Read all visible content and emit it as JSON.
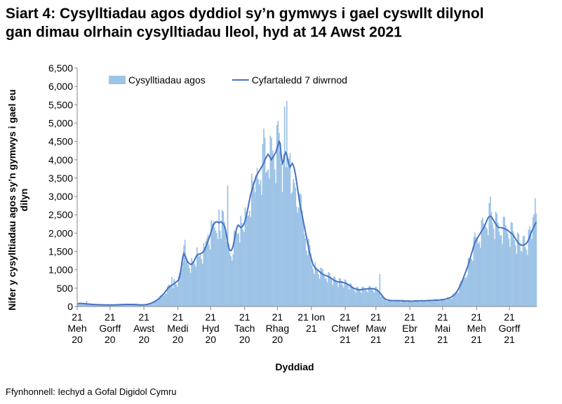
{
  "chart_data": {
    "type": "bar",
    "title": "Siart 4: Cysylltiadau agos dyddiol sy’n gymwys i gael cyswllt dilynol\ngan dimau olrhain cysylltiadau lleol, hyd at 14 Awst 2021",
    "x_label": "Dyddiad",
    "y_label": "Nifer y cysylltiadau agos sy’n gymwys i gael eu\ndilyn",
    "source": "Ffynhonnell: Iechyd a Gofal Digidol Cymru",
    "legend_position": "top",
    "ylim": [
      0,
      6500
    ],
    "yticks": [
      0,
      500,
      {
        "value": 1000,
        "label": "1,000"
      },
      {
        "value": 1500,
        "label": "1,500"
      },
      {
        "value": 2000,
        "label": "2,000"
      },
      {
        "value": 2500,
        "label": "2,500"
      },
      {
        "value": 3000,
        "label": "3,000"
      },
      {
        "value": 3500,
        "label": "3,500"
      },
      {
        "value": 4000,
        "label": "4,000"
      },
      {
        "value": 4500,
        "label": "4,500"
      },
      {
        "value": 5000,
        "label": "5,000"
      },
      {
        "value": 5500,
        "label": "5,500"
      },
      {
        "value": 6000,
        "label": "6,000"
      },
      {
        "value": 6500,
        "label": "6,500"
      }
    ],
    "categories": [
      "21\nMeh\n20",
      null,
      null,
      null,
      null,
      null,
      null,
      null,
      null,
      null,
      null,
      null,
      null,
      null,
      null,
      null,
      null,
      null,
      null,
      null,
      null,
      null,
      null,
      null,
      null,
      null,
      null,
      null,
      null,
      null,
      "21\nGorff\n20",
      null,
      null,
      null,
      null,
      null,
      null,
      null,
      null,
      null,
      null,
      null,
      null,
      null,
      null,
      null,
      null,
      null,
      null,
      null,
      null,
      null,
      null,
      null,
      null,
      null,
      null,
      null,
      null,
      null,
      null,
      "21\nAwst\n20",
      null,
      null,
      null,
      null,
      null,
      null,
      null,
      null,
      null,
      null,
      null,
      null,
      null,
      null,
      null,
      null,
      null,
      null,
      null,
      null,
      null,
      null,
      null,
      null,
      null,
      null,
      null,
      null,
      null,
      null,
      "21\nMedi\n20",
      null,
      null,
      null,
      null,
      null,
      null,
      null,
      null,
      null,
      null,
      null,
      null,
      null,
      null,
      null,
      null,
      null,
      null,
      null,
      null,
      null,
      null,
      null,
      null,
      null,
      null,
      null,
      null,
      null,
      "21\nHyd\n20",
      null,
      null,
      null,
      null,
      null,
      null,
      null,
      null,
      null,
      null,
      null,
      null,
      null,
      null,
      null,
      null,
      null,
      null,
      null,
      null,
      null,
      null,
      null,
      null,
      null,
      null,
      null,
      null,
      null,
      null,
      "21\nTach\n20",
      null,
      null,
      null,
      null,
      null,
      null,
      null,
      null,
      null,
      null,
      null,
      null,
      null,
      null,
      null,
      null,
      null,
      null,
      null,
      null,
      null,
      null,
      null,
      null,
      null,
      null,
      null,
      null,
      null,
      "21\nRhag\n20",
      null,
      null,
      null,
      null,
      null,
      null,
      null,
      null,
      null,
      null,
      null,
      null,
      null,
      null,
      null,
      null,
      null,
      null,
      null,
      null,
      null,
      null,
      null,
      null,
      null,
      null,
      null,
      null,
      null,
      null,
      "21 Ion\n21",
      null,
      null,
      null,
      null,
      null,
      null,
      null,
      null,
      null,
      null,
      null,
      null,
      null,
      null,
      null,
      null,
      null,
      null,
      null,
      null,
      null,
      null,
      null,
      null,
      null,
      null,
      null,
      null,
      null,
      null,
      "21\nChwef\n21",
      null,
      null,
      null,
      null,
      null,
      null,
      null,
      null,
      null,
      null,
      null,
      null,
      null,
      null,
      null,
      null,
      null,
      null,
      null,
      null,
      null,
      null,
      null,
      null,
      null,
      null,
      null,
      "21\nMaw\n21",
      null,
      null,
      null,
      null,
      null,
      null,
      null,
      null,
      null,
      null,
      null,
      null,
      null,
      null,
      null,
      null,
      null,
      null,
      null,
      null,
      null,
      null,
      null,
      null,
      null,
      null,
      null,
      null,
      null,
      null,
      "21\nEbr\n21",
      null,
      null,
      null,
      null,
      null,
      null,
      null,
      null,
      null,
      null,
      null,
      null,
      null,
      null,
      null,
      null,
      null,
      null,
      null,
      null,
      null,
      null,
      null,
      null,
      null,
      null,
      null,
      null,
      null,
      "21\nMai\n21",
      null,
      null,
      null,
      null,
      null,
      null,
      null,
      null,
      null,
      null,
      null,
      null,
      null,
      null,
      null,
      null,
      null,
      null,
      null,
      null,
      null,
      null,
      null,
      null,
      null,
      null,
      null,
      null,
      null,
      null,
      "21\nMeh\n21",
      null,
      null,
      null,
      null,
      null,
      null,
      null,
      null,
      null,
      null,
      null,
      null,
      null,
      null,
      null,
      null,
      null,
      null,
      null,
      null,
      null,
      null,
      null,
      null,
      null,
      null,
      null,
      null,
      null,
      "21\nGorff\n21",
      null,
      null,
      null,
      null,
      null,
      null,
      null,
      null,
      null,
      null,
      null,
      null,
      null,
      null,
      null,
      null,
      null,
      null,
      null,
      null,
      null,
      null,
      null,
      null
    ],
    "series": [
      {
        "name": "Cysylltiadau agos",
        "type": "bar",
        "color": "#9dc3e6",
        "values": [
          90,
          90,
          80,
          80,
          70,
          60,
          90,
          90,
          150,
          70,
          60,
          50,
          70,
          70,
          70,
          60,
          50,
          50,
          40,
          60,
          60,
          50,
          50,
          40,
          40,
          40,
          50,
          50,
          50,
          40,
          40,
          40,
          50,
          50,
          50,
          50,
          40,
          60,
          50,
          50,
          50,
          40,
          60,
          60,
          60,
          60,
          50,
          50,
          50,
          70,
          60,
          60,
          50,
          50,
          40,
          40,
          60,
          50,
          50,
          40,
          40,
          40,
          60,
          60,
          60,
          70,
          80,
          80,
          70,
          130,
          140,
          150,
          150,
          170,
          240,
          280,
          310,
          310,
          300,
          310,
          360,
          350,
          550,
          600,
          590,
          550,
          800,
          500,
          750,
          650,
          600,
          540,
          830,
          920,
          900,
          1030,
          1210,
          1670,
          1820,
          1250,
          1250,
          1140,
          1050,
          920,
          1320,
          1240,
          1220,
          1150,
          1080,
          1610,
          1420,
          1360,
          1440,
          1300,
          1170,
          1730,
          1630,
          1780,
          1870,
          1960,
          1680,
          1560,
          2360,
          2260,
          2330,
          2160,
          2070,
          2000,
          1840,
          2640,
          2070,
          1850,
          2630,
          2590,
          2310,
          2000,
          1760,
          3300,
          1700,
          1450,
          1370,
          1250,
          1430,
          2070,
          2050,
          2000,
          1980,
          2000,
          1740,
          2470,
          2280,
          2090,
          2030,
          2700,
          2570,
          2470,
          2480,
          2610,
          2440,
          3620,
          3410,
          3250,
          3110,
          3550,
          3780,
          3470,
          3330,
          3450,
          3040,
          4430,
          4850,
          4600,
          3640,
          3690,
          3740,
          3490,
          4660,
          4600,
          4250,
          4100,
          3740,
          3360,
          4950,
          5060,
          4730,
          4230,
          3900,
          3120,
          4150,
          5450,
          3800,
          5600,
          3800,
          4030,
          4180,
          3080,
          3120,
          3470,
          3370,
          3240,
          2720,
          2560,
          2700,
          3080,
          3050,
          2630,
          2350,
          1980,
          1850,
          1520,
          1400,
          1840,
          1670,
          1450,
          1130,
          1030,
          880,
          1210,
          1070,
          1020,
          880,
          760,
          1060,
          1040,
          1010,
          860,
          770,
          760,
          660,
          940,
          920,
          820,
          720,
          590,
          810,
          810,
          720,
          650,
          540,
          770,
          770,
          700,
          590,
          520,
          740,
          720,
          650,
          570,
          470,
          640,
          620,
          550,
          500,
          440,
          380,
          540,
          530,
          480,
          440,
          370,
          540,
          540,
          490,
          460,
          430,
          380,
          550,
          560,
          510,
          470,
          430,
          380,
          540,
          530,
          460,
          370,
          880,
          270,
          350,
          300,
          240,
          200,
          150,
          140,
          200,
          190,
          170,
          150,
          140,
          130,
          180,
          180,
          170,
          150,
          140,
          120,
          180,
          180,
          160,
          140,
          140,
          120,
          170,
          170,
          150,
          140,
          130,
          120,
          170,
          170,
          160,
          140,
          140,
          120,
          180,
          180,
          160,
          150,
          140,
          130,
          180,
          190,
          170,
          160,
          150,
          140,
          200,
          200,
          180,
          170,
          160,
          140,
          210,
          210,
          190,
          180,
          170,
          170,
          250,
          240,
          230,
          210,
          220,
          340,
          340,
          350,
          370,
          390,
          380,
          620,
          690,
          700,
          740,
          780,
          790,
          790,
          850,
          1320,
          1310,
          1280,
          1300,
          1240,
          1900,
          2010,
          1890,
          1850,
          1710,
          1760,
          1600,
          2360,
          2420,
          2260,
          2200,
          2170,
          2120,
          1940,
          2820,
          3000,
          2570,
          2280,
          2120,
          1840,
          2590,
          2530,
          2280,
          2040,
          1940,
          1940,
          1710,
          2450,
          2440,
          2220,
          2100,
          1980,
          1850,
          1620,
          2300,
          2280,
          2050,
          1810,
          1670,
          1440,
          2020,
          1980,
          1700,
          1510,
          1500,
          1920,
          1930,
          1620,
          1550,
          1410,
          2090,
          2190,
          2080,
          1840,
          2440,
          2510,
          2950,
          2530
        ]
      },
      {
        "name": "Cyfartaledd 7 diwrnod",
        "type": "line",
        "color": "#4472c4",
        "values": [
          80,
          82,
          84,
          85,
          83,
          80,
          78,
          75,
          72,
          70,
          68,
          65,
          62,
          60,
          58,
          55,
          53,
          52,
          50,
          50,
          48,
          47,
          46,
          45,
          45,
          44,
          44,
          43,
          43,
          42,
          42,
          42,
          43,
          44,
          45,
          46,
          47,
          48,
          50,
          52,
          53,
          54,
          55,
          55,
          56,
          57,
          57,
          58,
          58,
          58,
          57,
          56,
          55,
          54,
          52,
          50,
          48,
          46,
          45,
          45,
          46,
          48,
          52,
          56,
          62,
          70,
          80,
          90,
          100,
          115,
          130,
          150,
          170,
          190,
          210,
          240,
          270,
          300,
          330,
          360,
          400,
          440,
          480,
          520,
          540,
          560,
          580,
          600,
          620,
          650,
          670,
          690,
          720,
          800,
          950,
          1150,
          1350,
          1450,
          1400,
          1320,
          1250,
          1200,
          1170,
          1150,
          1150,
          1180,
          1220,
          1280,
          1350,
          1400,
          1420,
          1430,
          1440,
          1450,
          1470,
          1500,
          1550,
          1620,
          1700,
          1780,
          1860,
          1950,
          2050,
          2150,
          2220,
          2270,
          2300,
          2310,
          2300,
          2280,
          2300,
          2310,
          2290,
          2250,
          2200,
          2100,
          1950,
          1750,
          1600,
          1530,
          1520,
          1560,
          1650,
          1800,
          1950,
          2100,
          2200,
          2220,
          2180,
          2150,
          2170,
          2200,
          2250,
          2350,
          2450,
          2600,
          2750,
          2900,
          3050,
          3150,
          3250,
          3350,
          3450,
          3550,
          3600,
          3650,
          3700,
          3750,
          3800,
          3850,
          3900,
          4000,
          4050,
          4100,
          4150,
          4100,
          4050,
          4000,
          4050,
          4100,
          4150,
          4200,
          4300,
          4400,
          4500,
          4450,
          4100,
          3900,
          3950,
          4100,
          4200,
          4150,
          4000,
          3850,
          3800,
          3850,
          3900,
          3850,
          3750,
          3600,
          3400,
          3200,
          3000,
          2800,
          2650,
          2500,
          2350,
          2200,
          2050,
          1900,
          1750,
          1600,
          1450,
          1350,
          1250,
          1150,
          1100,
          1050,
          1020,
          1000,
          980,
          950,
          920,
          900,
          880,
          860,
          850,
          840,
          830,
          820,
          800,
          780,
          760,
          740,
          720,
          700,
          690,
          680,
          670,
          670,
          670,
          670,
          660,
          650,
          640,
          630,
          620,
          600,
          580,
          560,
          540,
          520,
          500,
          490,
          480,
          470,
          460,
          460,
          460,
          460,
          470,
          470,
          470,
          480,
          480,
          480,
          480,
          490,
          490,
          490,
          480,
          480,
          470,
          460,
          440,
          410,
          380,
          340,
          300,
          260,
          230,
          210,
          190,
          180,
          170,
          165,
          160,
          160,
          160,
          160,
          160,
          160,
          160,
          160,
          160,
          155,
          155,
          155,
          150,
          150,
          150,
          150,
          150,
          145,
          145,
          145,
          145,
          150,
          150,
          150,
          150,
          150,
          150,
          155,
          155,
          155,
          155,
          155,
          160,
          160,
          160,
          160,
          165,
          165,
          165,
          170,
          170,
          170,
          175,
          175,
          175,
          180,
          180,
          185,
          190,
          195,
          200,
          210,
          220,
          230,
          240,
          250,
          270,
          290,
          320,
          350,
          390,
          430,
          480,
          540,
          600,
          670,
          740,
          820,
          900,
          980,
          1060,
          1150,
          1250,
          1350,
          1450,
          1550,
          1650,
          1750,
          1800,
          1850,
          1900,
          1950,
          2000,
          2050,
          2100,
          2150,
          2200,
          2280,
          2350,
          2420,
          2450,
          2460,
          2450,
          2400,
          2350,
          2300,
          2250,
          2200,
          2170,
          2150,
          2150,
          2150,
          2140,
          2130,
          2120,
          2110,
          2100,
          2080,
          2050,
          2020,
          2000,
          1980,
          1950,
          1900,
          1850,
          1800,
          1760,
          1720,
          1700,
          1680,
          1670,
          1670,
          1680,
          1700,
          1720,
          1760,
          1820,
          1900,
          1980,
          2050,
          2120,
          2180,
          2240,
          2300
        ]
      }
    ]
  }
}
